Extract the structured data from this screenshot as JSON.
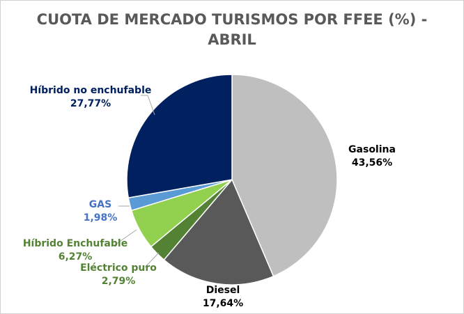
{
  "chart_data": {
    "type": "pie",
    "title_line1": "CUOTA DE MERCADO TURISMOS POR FFEE (%) -",
    "title_line2": "ABRIL",
    "slices": [
      {
        "name": "Gasolina",
        "value": 43.56,
        "value_label": "43,56%",
        "color": "#BFBFBF",
        "label_color": "#000000"
      },
      {
        "name": "Diesel",
        "value": 17.64,
        "value_label": "17,64%",
        "color": "#595959",
        "label_color": "#000000"
      },
      {
        "name": "Eléctrico puro",
        "value": 2.79,
        "value_label": "2,79%",
        "color": "#548235",
        "label_color": "#548235"
      },
      {
        "name": "Híbrido Enchufable",
        "value": 6.27,
        "value_label": "6,27%",
        "color": "#92D050",
        "label_color": "#548235"
      },
      {
        "name": "GAS",
        "value": 1.98,
        "value_label": "1,98%",
        "color": "#5B9BD5",
        "label_color": "#4472C4"
      },
      {
        "name": "Híbrido no enchufable",
        "value": 27.77,
        "value_label": "27,77%",
        "color": "#002060",
        "label_color": "#002060"
      }
    ]
  }
}
